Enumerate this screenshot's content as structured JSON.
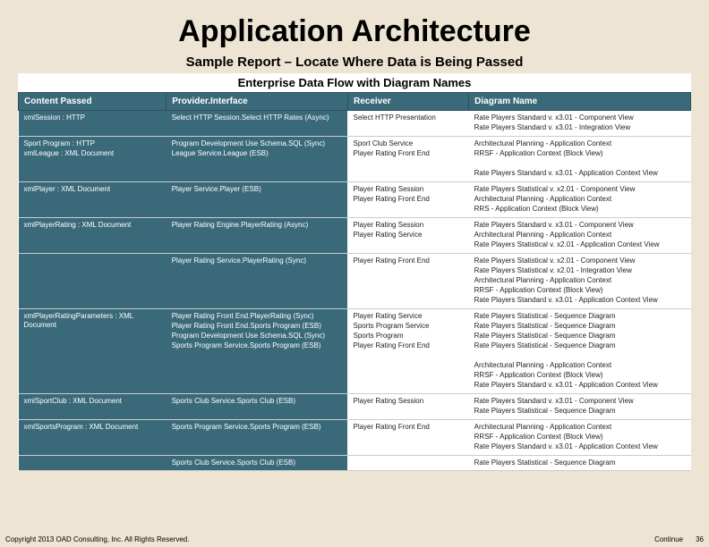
{
  "title": "Application Architecture",
  "subtitle": "Sample Report – Locate Where Data is Being Passed",
  "table_title": "Enterprise Data Flow with Diagram Names",
  "colors": {
    "page_bg": "#ede4d3",
    "header_bg": "#3a6a7a",
    "header_text": "#ffffff",
    "cell_bg": "#ffffff",
    "cell_text": "#222222",
    "border": "#cccccc"
  },
  "columns": [
    "Content Passed",
    "Provider.Interface",
    "Receiver",
    "Diagram Name"
  ],
  "rows": [
    {
      "c0": "xmlSession : HTTP",
      "c1": "Select HTTP Session.Select HTTP Rates (Async)",
      "c2": "Select HTTP Presentation",
      "c3": [
        "Rate Players Standard v. x3.01 - Component View",
        "Rate Players Standard v. x3.01 - Integration View"
      ]
    },
    {
      "c0": [
        "Sport Program : HTTP",
        "xmlLeague : XML Document"
      ],
      "c1": [
        "Program Development Use Schema.SQL (Sync)",
        "League Service.League (ESB)"
      ],
      "c2": [
        "Sport Club Service",
        "Player Rating Front End"
      ],
      "c3": [
        "Architectural Planning - Application Context",
        "RRSF - Application Context (Block View)",
        "",
        "Rate Players Standard v. x3.01 - Application Context View"
      ]
    },
    {
      "c0": "xmlPlayer : XML Document",
      "c1": "Player Service.Player (ESB)",
      "c2": [
        "Player Rating Session",
        "Player Rating Front End"
      ],
      "c3": [
        "Rate Players Statistical v. x2.01 - Component View",
        "Architectural Planning - Application Context",
        "RRS - Application Context (Block View)"
      ]
    },
    {
      "c0": "xmlPlayerRating : XML Document",
      "c1": "Player Rating Engine.PlayerRating (Async)",
      "c2": [
        "Player Rating Session",
        "Player Rating Service"
      ],
      "c3": [
        "Rate Players Standard v. x3.01 - Component View",
        "Architectural Planning - Application Context",
        "Rate Players Statistical v. x2.01 - Application Context View"
      ]
    },
    {
      "c0": "",
      "c1": "Player Rating Service.PlayerRating (Sync)",
      "c2": "Player Rating Front End",
      "c3": [
        "Rate Players Statistical v. x2.01 - Component View",
        "Rate Players Statistical v. x2.01 - Integration View",
        "Architectural Planning - Application Context",
        "RRSF - Application Context (Block View)",
        "Rate Players Standard v. x3.01 - Application Context View"
      ]
    },
    {
      "c0": "xmlPlayerRatingParameters : XML Document",
      "c1": [
        "Player Rating Front End.PlayerRating (Sync)",
        "Player Rating Front End.Sports Program (ESB)",
        "Program Development Use Schema.SQL (Sync)",
        "Sports Program Service.Sports Program (ESB)"
      ],
      "c2": [
        "Player Rating Service",
        "Sports Program Service",
        "Sports Program",
        "Player Rating Front End"
      ],
      "c3": [
        "Rate Players Statistical - Sequence Diagram",
        "Rate Players Statistical - Sequence Diagram",
        "Rate Players Statistical - Sequence Diagram",
        "Rate Players Statistical - Sequence Diagram",
        "",
        "Architectural Planning - Application Context",
        "RRSF - Application Context (Block View)",
        "Rate Players Standard v. x3.01 - Application Context View"
      ]
    },
    {
      "c0": "xmlSportClub : XML Document",
      "c1": "Sports Club Service.Sports Club (ESB)",
      "c2": "Player Rating Session",
      "c3": [
        "Rate Players Standard v. x3.01 - Component View",
        "Rate Players Statistical - Sequence Diagram"
      ]
    },
    {
      "c0": "xmlSportsProgram : XML Document",
      "c1": "Sports Program Service.Sports Program (ESB)",
      "c2": "Player Rating Front End",
      "c3": [
        "Architectural Planning - Application Context",
        "RRSF - Application Context (Block View)",
        "Rate Players Standard v. x3.01 - Application Context View"
      ]
    },
    {
      "c0": "",
      "c1": "Sports Club Service.Sports Club (ESB)",
      "c2": "",
      "c3": "Rate Players Statistical - Sequence Diagram"
    }
  ],
  "footer": {
    "left": "Copyright 2013 OAD Consulting, Inc. All Rights Reserved.",
    "continue": "Continue",
    "page": "36"
  }
}
